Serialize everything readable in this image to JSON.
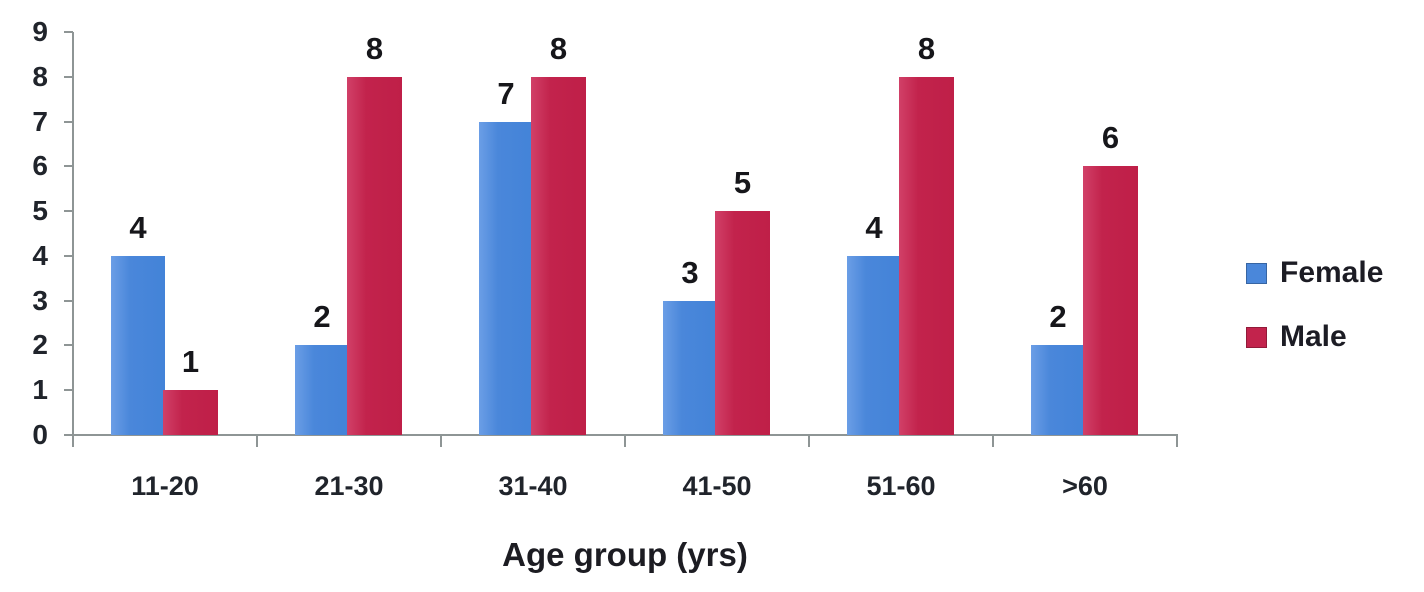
{
  "chart_data": {
    "type": "bar",
    "title": "",
    "xlabel": "Age group (yrs)",
    "ylabel": "",
    "categories": [
      "11-20",
      "21-30",
      "31-40",
      "41-50",
      "51-60",
      ">60"
    ],
    "series": [
      {
        "name": "Female",
        "color": "#4a87da",
        "values": [
          4,
          2,
          7,
          3,
          4,
          2
        ]
      },
      {
        "name": "Male",
        "color": "#c2234c",
        "values": [
          1,
          8,
          8,
          5,
          8,
          6
        ]
      }
    ],
    "ylim": [
      0,
      9
    ],
    "yticks": [
      0,
      1,
      2,
      3,
      4,
      5,
      6,
      7,
      8,
      9
    ],
    "grid": false,
    "legend_position": "right",
    "value_labels": true,
    "axis_color": "#8e9595",
    "text_color": "#20242b"
  }
}
